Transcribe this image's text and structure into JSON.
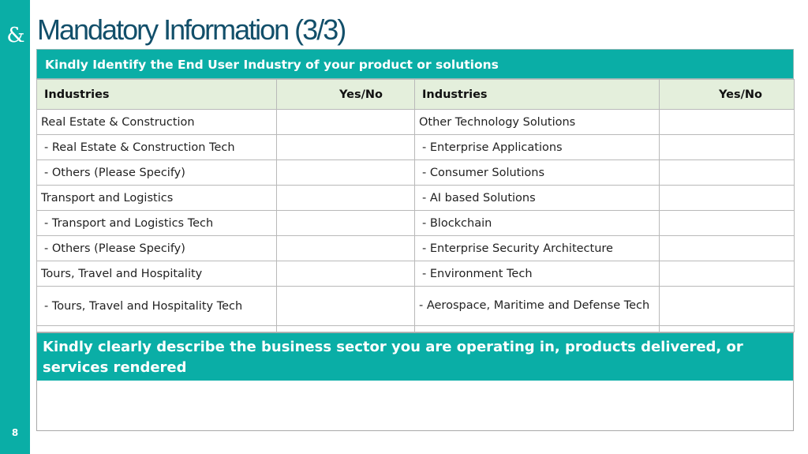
{
  "side": {
    "logo_glyph": "&",
    "page_number": "8"
  },
  "title": "Mandatory Information (3/3)",
  "industry_table": {
    "banner": "Kindly Identify the End User Industry of your product or solutions",
    "headers": {
      "industries_left": "Industries",
      "yesno_left": "Yes/No",
      "industries_right": "Industries",
      "yesno_right": "Yes/No"
    },
    "rows": [
      {
        "left": "Real Estate & Construction",
        "right": "Other Technology Solutions"
      },
      {
        "left": "- Real Estate & Construction Tech",
        "right": "- Enterprise Applications"
      },
      {
        "left": "- Others (Please Specify)",
        "right": "- Consumer Solutions"
      },
      {
        "left": "Transport and Logistics",
        "right": "- AI based Solutions"
      },
      {
        "left": "- Transport and Logistics Tech",
        "right": "- Blockchain"
      },
      {
        "left": "- Others (Please Specify)",
        "right": "- Enterprise Security Architecture"
      },
      {
        "left": "Tours, Travel and Hospitality",
        "right": "- Environment Tech"
      },
      {
        "left": "- Tours, Travel and Hospitality Tech",
        "right": "- Aerospace, Maritime and Defense Tech"
      }
    ]
  },
  "description": {
    "banner": "Kindly clearly describe the business sector you are operating in, products delivered, or services rendered",
    "value": ""
  },
  "colors": {
    "teal": "#0aaea6",
    "title_navy": "#124f6a",
    "header_green": "#e4efdc"
  }
}
